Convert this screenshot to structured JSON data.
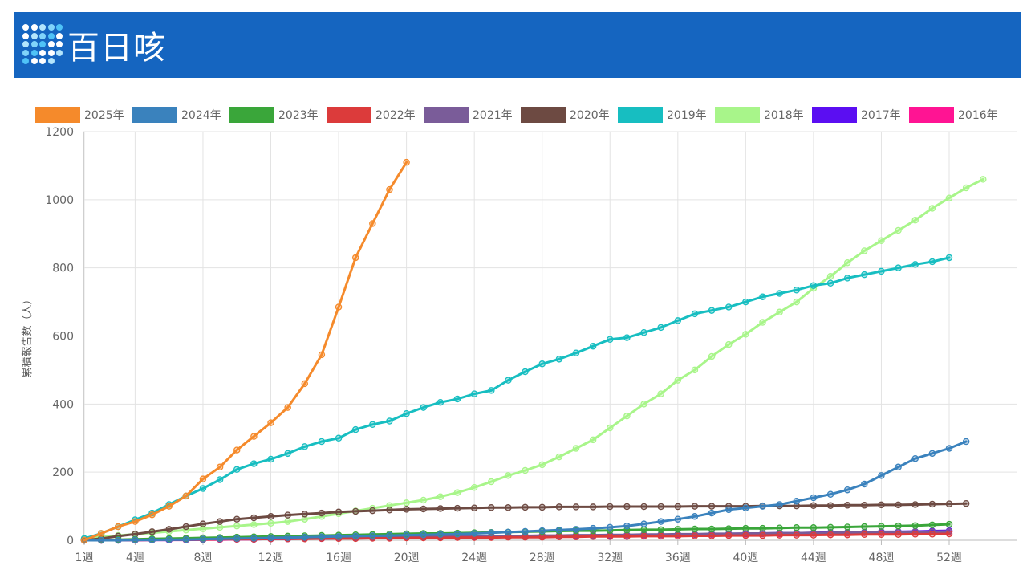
{
  "header": {
    "title": "百日咳",
    "logo_icon": "dot-grid-icon"
  },
  "chart_data": {
    "type": "line",
    "title": "",
    "xlabel": "",
    "ylabel": "累積報告数（人）",
    "ylim": [
      0,
      1200
    ],
    "yticks": [
      "0",
      "200",
      "400",
      "600",
      "800",
      "1000",
      "1200"
    ],
    "x_range": [
      1,
      53
    ],
    "xticks": [
      {
        "week": 1,
        "label": "1週"
      },
      {
        "week": 4,
        "label": "4週"
      },
      {
        "week": 8,
        "label": "8週"
      },
      {
        "week": 12,
        "label": "12週"
      },
      {
        "week": 16,
        "label": "16週"
      },
      {
        "week": 20,
        "label": "20週"
      },
      {
        "week": 24,
        "label": "24週"
      },
      {
        "week": 28,
        "label": "28週"
      },
      {
        "week": 32,
        "label": "32週"
      },
      {
        "week": 36,
        "label": "36週"
      },
      {
        "week": 40,
        "label": "40週"
      },
      {
        "week": 44,
        "label": "44週"
      },
      {
        "week": 48,
        "label": "48週"
      },
      {
        "week": 52,
        "label": "52週"
      }
    ],
    "grid": true,
    "legend_position": "top",
    "series": [
      {
        "name": "2016年",
        "color": "#ff1493",
        "values": [
          0,
          0,
          0,
          0,
          1,
          1,
          1,
          2,
          2,
          3,
          3,
          4,
          4,
          5,
          5,
          6,
          6,
          7,
          7,
          8,
          8,
          9,
          9,
          10,
          10,
          11,
          11,
          12,
          12,
          13,
          14,
          14,
          15,
          15,
          16,
          16,
          17,
          17,
          18,
          18,
          19,
          19,
          20,
          20,
          21,
          21,
          22,
          22,
          23,
          23,
          24,
          25
        ]
      },
      {
        "name": "2017年",
        "color": "#5b0ef2",
        "values": [
          0,
          0,
          0,
          1,
          1,
          1,
          2,
          2,
          3,
          3,
          3,
          4,
          4,
          5,
          5,
          6,
          6,
          7,
          7,
          8,
          8,
          9,
          9,
          10,
          10,
          11,
          11,
          12,
          13,
          13,
          14,
          14,
          15,
          16,
          16,
          17,
          17,
          18,
          19,
          19,
          20,
          21,
          21,
          22,
          23,
          23,
          24,
          25,
          25,
          26,
          27,
          28
        ]
      },
      {
        "name": "2018年",
        "color": "#a8f58a",
        "values": [
          5,
          10,
          14,
          18,
          22,
          26,
          30,
          34,
          38,
          42,
          46,
          50,
          55,
          62,
          70,
          78,
          86,
          94,
          102,
          110,
          118,
          128,
          140,
          155,
          172,
          190,
          205,
          222,
          245,
          270,
          295,
          330,
          365,
          400,
          430,
          470,
          500,
          540,
          575,
          605,
          640,
          670,
          700,
          740,
          775,
          815,
          850,
          880,
          910,
          940,
          975,
          1005,
          1035,
          1060
        ]
      },
      {
        "name": "2019年",
        "color": "#17bec1",
        "values": [
          5,
          20,
          40,
          60,
          80,
          105,
          130,
          152,
          178,
          208,
          225,
          238,
          255,
          275,
          290,
          300,
          325,
          340,
          350,
          372,
          390,
          405,
          415,
          430,
          440,
          470,
          495,
          518,
          532,
          550,
          570,
          590,
          595,
          610,
          625,
          645,
          665,
          675,
          685,
          700,
          715,
          725,
          735,
          748,
          755,
          770,
          780,
          790,
          800,
          810,
          818,
          830
        ]
      },
      {
        "name": "2020年",
        "color": "#6d4a42",
        "values": [
          0,
          5,
          12,
          18,
          25,
          32,
          40,
          48,
          55,
          62,
          66,
          70,
          74,
          77,
          80,
          83,
          85,
          87,
          89,
          91,
          92,
          93,
          94,
          95,
          96,
          96,
          97,
          97,
          98,
          98,
          98,
          99,
          99,
          99,
          99,
          99,
          100,
          100,
          100,
          100,
          101,
          101,
          101,
          102,
          102,
          103,
          103,
          104,
          104,
          105,
          106,
          107,
          108
        ]
      },
      {
        "name": "2021年",
        "color": "#7a5c99",
        "values": [
          0,
          0,
          1,
          1,
          2,
          2,
          3,
          3,
          4,
          5,
          5,
          6,
          6,
          7,
          7,
          8,
          8,
          9,
          9,
          10,
          10,
          11,
          11,
          12,
          12,
          13,
          13,
          14,
          14,
          15,
          15,
          16,
          16,
          17,
          17,
          18,
          18,
          19,
          19,
          20,
          20,
          21,
          21,
          22,
          22,
          23,
          23,
          24,
          24,
          25,
          25,
          26
        ]
      },
      {
        "name": "2022年",
        "color": "#dc3b3b",
        "values": [
          0,
          0,
          1,
          1,
          1,
          2,
          2,
          2,
          3,
          3,
          3,
          4,
          4,
          4,
          5,
          5,
          5,
          6,
          6,
          7,
          7,
          7,
          8,
          8,
          8,
          9,
          9,
          9,
          10,
          10,
          11,
          11,
          11,
          12,
          12,
          12,
          13,
          13,
          14,
          14,
          14,
          15,
          15,
          15,
          16,
          16,
          17,
          17,
          17,
          18,
          18,
          19
        ]
      },
      {
        "name": "2023年",
        "color": "#3aa63a",
        "values": [
          0,
          1,
          2,
          3,
          4,
          5,
          6,
          7,
          8,
          9,
          10,
          11,
          12,
          13,
          14,
          15,
          16,
          17,
          18,
          19,
          20,
          20,
          21,
          22,
          23,
          24,
          25,
          26,
          27,
          28,
          28,
          29,
          30,
          31,
          31,
          32,
          33,
          33,
          34,
          35,
          35,
          36,
          37,
          37,
          38,
          39,
          40,
          41,
          42,
          43,
          45,
          47
        ]
      },
      {
        "name": "2024年",
        "color": "#3a82bd",
        "values": [
          0,
          0,
          0,
          1,
          1,
          2,
          2,
          3,
          4,
          5,
          6,
          7,
          8,
          9,
          10,
          11,
          12,
          13,
          14,
          15,
          16,
          17,
          18,
          20,
          22,
          24,
          26,
          28,
          30,
          32,
          35,
          38,
          42,
          48,
          55,
          62,
          70,
          80,
          90,
          95,
          100,
          105,
          115,
          125,
          135,
          148,
          165,
          190,
          215,
          240,
          255,
          270,
          290
        ]
      },
      {
        "name": "2025年",
        "color": "#f58a2b",
        "values": [
          0,
          20,
          40,
          55,
          75,
          100,
          130,
          180,
          215,
          265,
          305,
          345,
          390,
          460,
          545,
          685,
          830,
          930,
          1030,
          1110
        ]
      }
    ]
  }
}
